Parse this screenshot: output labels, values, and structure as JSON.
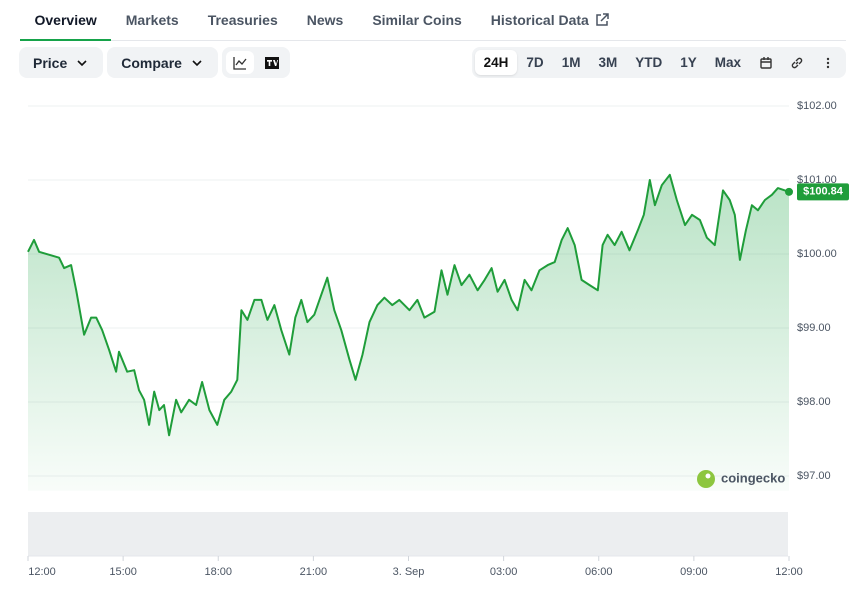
{
  "tabs": [
    "Overview",
    "Markets",
    "Treasuries",
    "News",
    "Similar Coins",
    "Historical Data"
  ],
  "active_tab": 0,
  "dropdowns": [
    "Price",
    "Compare"
  ],
  "ranges": [
    "24H",
    "7D",
    "1M",
    "3M",
    "YTD",
    "1Y",
    "Max"
  ],
  "active_range": 0,
  "chart_data": {
    "type": "area",
    "color": "#1f9d3a",
    "x": [
      0,
      0.19,
      0.35,
      0.66,
      0.98,
      1.14,
      1.36,
      1.52,
      1.77,
      1.99,
      2.15,
      2.34,
      2.56,
      2.78,
      2.87,
      3.13,
      3.35,
      3.5,
      3.66,
      3.82,
      3.98,
      4.14,
      4.29,
      4.45,
      4.67,
      4.83,
      5.08,
      5.3,
      5.49,
      5.72,
      5.97,
      6.19,
      6.41,
      6.6,
      6.73,
      6.92,
      7.14,
      7.36,
      7.55,
      7.77,
      7.99,
      8.24,
      8.43,
      8.62,
      8.81,
      9.03,
      9.25,
      9.44,
      9.66,
      9.88,
      10.14,
      10.33,
      10.55,
      10.77,
      11.02,
      11.24,
      11.49,
      11.71,
      12.03,
      12.28,
      12.5,
      12.82,
      13.04,
      13.23,
      13.45,
      13.67,
      13.92,
      14.18,
      14.4,
      14.62,
      14.81,
      15.03,
      15.25,
      15.44,
      15.66,
      15.88,
      16.13,
      16.39,
      16.61,
      16.83,
      17.02,
      17.24,
      17.46,
      17.71,
      17.97,
      18.12,
      18.28,
      18.5,
      18.72,
      18.97,
      19.23,
      19.42,
      19.61,
      19.77,
      19.99,
      20.24,
      20.46,
      20.72,
      20.94,
      21.19,
      21.41,
      21.66,
      21.92,
      22.13,
      22.29,
      22.45,
      22.64,
      22.83,
      23.02,
      23.24,
      23.46,
      23.65,
      23.87,
      24
    ],
    "values": [
      100.03,
      100.19,
      100.03,
      99.99,
      99.95,
      99.81,
      99.85,
      99.51,
      98.91,
      99.14,
      99.14,
      98.97,
      98.7,
      98.41,
      98.68,
      98.41,
      98.43,
      98.16,
      98.03,
      97.69,
      98.14,
      97.89,
      97.96,
      97.55,
      98.03,
      97.86,
      98.03,
      97.96,
      98.27,
      97.89,
      97.69,
      98.03,
      98.14,
      98.3,
      99.24,
      99.11,
      99.38,
      99.38,
      99.11,
      99.31,
      98.97,
      98.64,
      99.14,
      99.38,
      99.08,
      99.18,
      99.45,
      99.68,
      99.24,
      98.97,
      98.57,
      98.3,
      98.64,
      99.08,
      99.31,
      99.41,
      99.31,
      99.38,
      99.24,
      99.38,
      99.14,
      99.22,
      99.78,
      99.45,
      99.85,
      99.58,
      99.72,
      99.51,
      99.65,
      99.81,
      99.49,
      99.65,
      99.38,
      99.24,
      99.65,
      99.51,
      99.78,
      99.85,
      99.89,
      100.19,
      100.35,
      100.12,
      99.65,
      99.58,
      99.51,
      100.12,
      100.26,
      100.12,
      100.3,
      100.05,
      100.32,
      100.53,
      101.0,
      100.66,
      100.93,
      101.07,
      100.73,
      100.39,
      100.53,
      100.46,
      100.22,
      100.12,
      100.86,
      100.73,
      100.53,
      99.92,
      100.32,
      100.66,
      100.59,
      100.73,
      100.8,
      100.89,
      100.86,
      100.84
    ],
    "xlim": [
      0,
      24
    ],
    "xticks": [
      {
        "value": 0,
        "label": "12:00"
      },
      {
        "value": 3,
        "label": "15:00"
      },
      {
        "value": 6,
        "label": "18:00"
      },
      {
        "value": 9,
        "label": "21:00"
      },
      {
        "value": 12,
        "label": "3. Sep"
      },
      {
        "value": 15,
        "label": "03:00"
      },
      {
        "value": 18,
        "label": "06:00"
      },
      {
        "value": 21,
        "label": "09:00"
      },
      {
        "value": 24,
        "label": "12:00"
      }
    ],
    "ylim": [
      96.8,
      102
    ],
    "yticks": [
      {
        "value": 97,
        "label": "$97.00"
      },
      {
        "value": 98,
        "label": "$98.00"
      },
      {
        "value": 99,
        "label": "$99.00"
      },
      {
        "value": 100,
        "label": "$100.00"
      },
      {
        "value": 101,
        "label": "$101.00"
      },
      {
        "value": 102,
        "label": "$102.00"
      }
    ],
    "grid": true,
    "current_price": {
      "value": 100.84,
      "label": "$100.84"
    },
    "watermark": "coingecko"
  }
}
